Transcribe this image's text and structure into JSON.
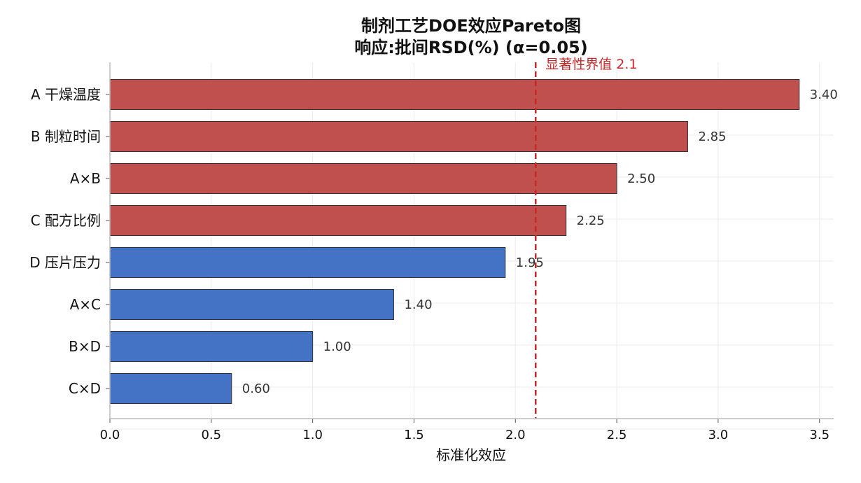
{
  "chart_data": {
    "type": "bar",
    "orientation": "horizontal",
    "title": "制剂工艺DOE效应Pareto图",
    "subtitle": "响应:批间RSD(%)  (α=0.05)",
    "xlabel": "标准化效应",
    "ylabel": "",
    "xlim": [
      0,
      3.57
    ],
    "xticks": [
      "0.0",
      "0.5",
      "1.0",
      "1.5",
      "2.0",
      "2.5",
      "3.0",
      "3.5"
    ],
    "categories": [
      "A 干燥温度",
      "B 制粒时间",
      "A×B",
      "C 配方比例",
      "D 压片压力",
      "A×C",
      "B×D",
      "C×D"
    ],
    "values": [
      3.4,
      2.85,
      2.5,
      2.25,
      1.95,
      1.4,
      1.0,
      0.6
    ],
    "value_labels": [
      "3.40",
      "2.85",
      "2.50",
      "2.25",
      "1.95",
      "1.40",
      "1.00",
      "0.60"
    ],
    "threshold": {
      "value": 2.1,
      "label": "显著性界值 2.1",
      "color": "#c62828"
    },
    "colors": {
      "significant": "#c0504d",
      "not_significant": "#4472c4",
      "bar_edge": "#333333",
      "grid": "#ebebeb",
      "axis": "#bdbdbd"
    },
    "grid": true,
    "legend": false
  }
}
